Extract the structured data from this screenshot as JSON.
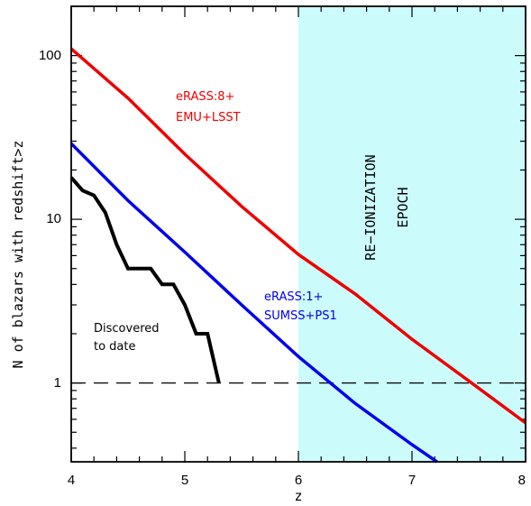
{
  "chart_data": {
    "type": "line",
    "title": "",
    "xlabel": "z",
    "ylabel": "N of blazars with redshift>z",
    "xlim": [
      4,
      8
    ],
    "ylim": [
      0.33,
      200
    ],
    "yscale": "log",
    "x_ticks": [
      "4",
      "5",
      "6",
      "7",
      "8"
    ],
    "y_ticks": [
      "1",
      "10",
      "100"
    ],
    "reionization_region": {
      "x": [
        6,
        8
      ],
      "color": "#ccfbfb",
      "label_line1": "RE−IONIZATION",
      "label_line2": "EPOCH"
    },
    "reference_line": {
      "y": 1,
      "style": "dashed"
    },
    "series": [
      {
        "label_line1": "eRASS:8+",
        "label_line2": "EMU+LSST",
        "color": "#ee0000",
        "x": [
          4.0,
          4.5,
          5.0,
          5.5,
          6.0,
          6.5,
          7.0,
          7.5,
          8.0
        ],
        "y": [
          110,
          55,
          25,
          12,
          6.1,
          3.5,
          1.85,
          1.03,
          0.57
        ]
      },
      {
        "label_line1": "eRASS:1+",
        "label_line2": "SUMSS+PS1",
        "color": "#0000ee",
        "x": [
          4.0,
          4.5,
          5.0,
          5.5,
          6.0,
          6.5,
          7.0,
          7.22
        ],
        "y": [
          29,
          13,
          6.3,
          3.0,
          1.45,
          0.75,
          0.42,
          0.33
        ]
      },
      {
        "label_line1": "Discovered",
        "label_line2": "to date",
        "color": "#000000",
        "x": [
          4.0,
          4.1,
          4.2,
          4.3,
          4.4,
          4.5,
          4.6,
          4.7,
          4.8,
          4.9,
          5.0,
          5.1,
          5.2,
          5.3
        ],
        "y": [
          18,
          15,
          14,
          11,
          7,
          5,
          5,
          5,
          4,
          4,
          3,
          2,
          2,
          1
        ]
      }
    ]
  }
}
